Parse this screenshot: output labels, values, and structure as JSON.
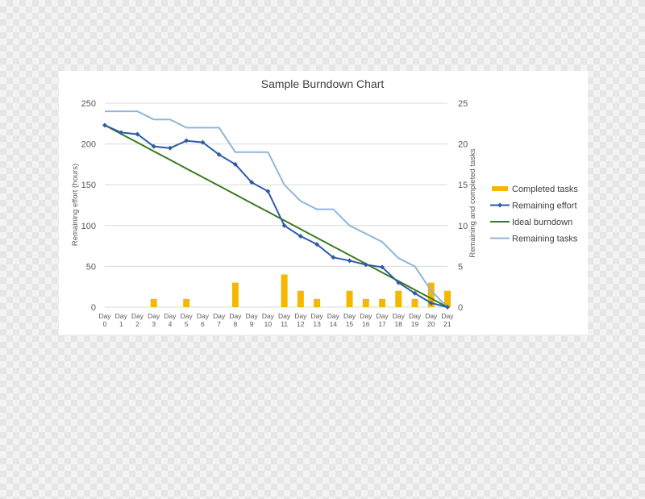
{
  "chart_data": {
    "type": "bar",
    "title": "Sample Burndown Chart",
    "ylabel": "Remaining effort (hours)",
    "y2label": "Remaining and completed tasks",
    "ylim": [
      0,
      250
    ],
    "y2lim": [
      0,
      25
    ],
    "yticks": [
      "0",
      "50",
      "100",
      "150",
      "200",
      "250"
    ],
    "y2ticks": [
      "0",
      "5",
      "10",
      "15",
      "20",
      "25"
    ],
    "grid": true,
    "legend_position": "right",
    "categories": [
      "Day 0",
      "Day 1",
      "Day 2",
      "Day 3",
      "Day 4",
      "Day 5",
      "Day 6",
      "Day 7",
      "Day 8",
      "Day 9",
      "Day 10",
      "Day 11",
      "Day 12",
      "Day 13",
      "Day 14",
      "Day 15",
      "Day 16",
      "Day 17",
      "Day 18",
      "Day 19",
      "Day 20",
      "Day 21"
    ],
    "series": [
      {
        "name": "Completed tasks",
        "type": "bar",
        "axis": "right",
        "color": "#f5b800",
        "values": [
          0,
          0,
          0,
          1,
          0,
          1,
          0,
          0,
          3,
          0,
          0,
          4,
          2,
          1,
          0,
          2,
          1,
          1,
          2,
          1,
          3,
          2
        ]
      },
      {
        "name": "Remaining effort",
        "type": "line",
        "axis": "left",
        "color": "#2e5ca8",
        "marker": "diamond",
        "values": [
          223,
          214,
          212,
          197,
          195,
          204,
          202,
          187,
          175,
          153,
          142,
          100,
          87,
          77,
          61,
          57,
          52,
          49,
          30,
          17,
          5,
          0
        ]
      },
      {
        "name": "Ideal burndown",
        "type": "line",
        "axis": "left",
        "color": "#3a7a1e",
        "values": [
          223,
          212.4,
          201.8,
          191.1,
          180.5,
          169.9,
          159.3,
          148.7,
          138.0,
          127.4,
          116.8,
          106.2,
          95.6,
          85.0,
          74.3,
          63.7,
          53.1,
          42.5,
          31.9,
          21.2,
          10.6,
          0
        ]
      },
      {
        "name": "Remaining tasks",
        "type": "line",
        "axis": "right",
        "color": "#8fb6d8",
        "values": [
          24,
          24,
          24,
          23,
          23,
          22,
          22,
          22,
          19,
          19,
          19,
          15,
          13,
          12,
          12,
          10,
          9,
          8,
          6,
          5,
          2,
          0
        ]
      }
    ]
  }
}
